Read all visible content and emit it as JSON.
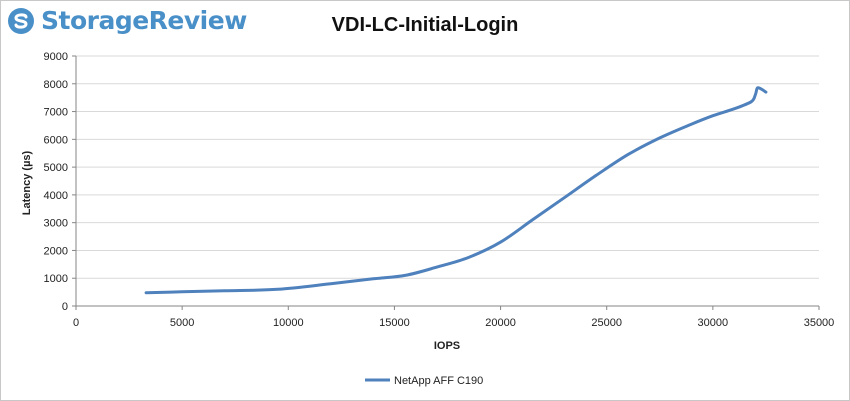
{
  "brand": {
    "name": "StorageReview",
    "logo_icon": "storagereview-logo-icon"
  },
  "chart_data": {
    "type": "line",
    "title": "VDI-LC-Initial-Login",
    "xlabel": "IOPS",
    "ylabel": "Latency (µs)",
    "xlim": [
      0,
      35000
    ],
    "ylim": [
      0,
      9000
    ],
    "xticks": [
      0,
      5000,
      10000,
      15000,
      20000,
      25000,
      30000,
      35000
    ],
    "yticks": [
      0,
      1000,
      2000,
      3000,
      4000,
      5000,
      6000,
      7000,
      8000,
      9000
    ],
    "grid": "horizontal",
    "legend_position": "bottom",
    "series": [
      {
        "name": "NetApp AFF C190",
        "color": "#4f81bd",
        "x": [
          3300,
          5000,
          7000,
          9500,
          12000,
          14000,
          15500,
          17000,
          18500,
          20000,
          21500,
          23000,
          24500,
          26000,
          27500,
          29000,
          30000,
          31000,
          31800,
          32000,
          32100,
          32300,
          32500
        ],
        "y": [
          480,
          510,
          550,
          600,
          800,
          980,
          1100,
          1400,
          1750,
          2300,
          3100,
          3900,
          4700,
          5450,
          6050,
          6550,
          6850,
          7100,
          7350,
          7600,
          7850,
          7800,
          7700
        ]
      }
    ]
  }
}
